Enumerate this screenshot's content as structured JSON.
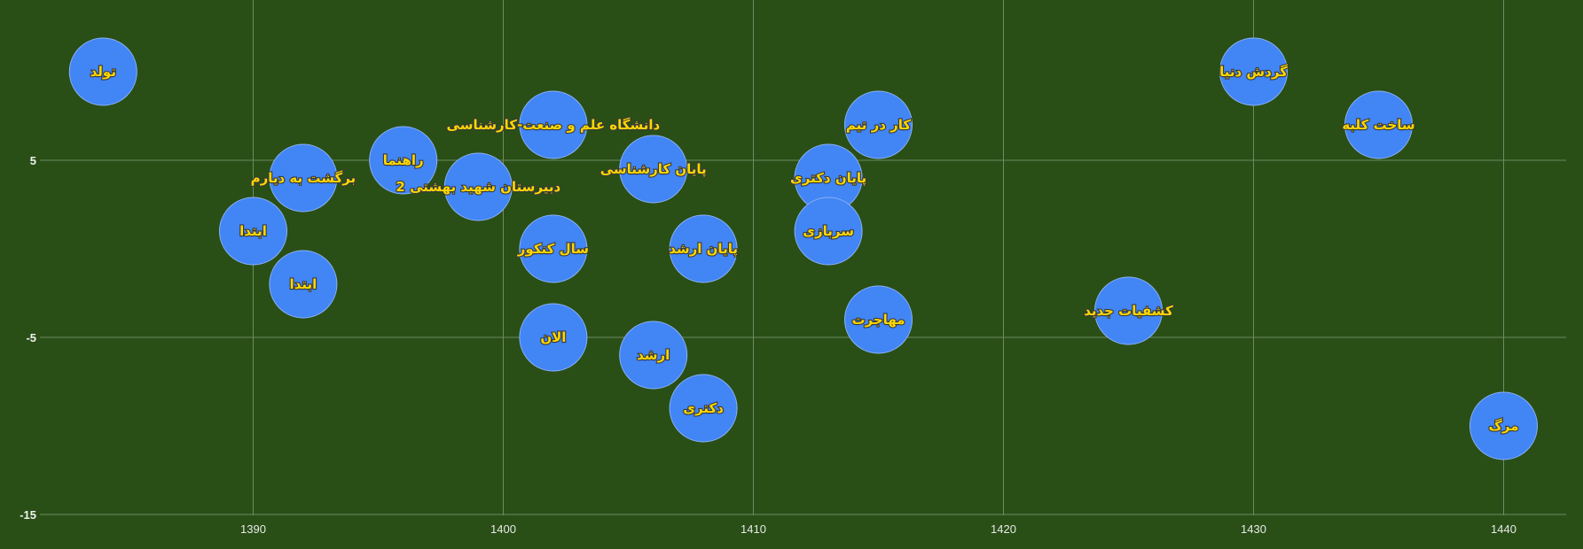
{
  "chart_data": {
    "type": "scatter",
    "title": "",
    "xlabel": "",
    "ylabel": "",
    "xlim": [
      1382,
      1443
    ],
    "ylim": [
      -15,
      15
    ],
    "xticks": [
      1390,
      1400,
      1410,
      1420,
      1430,
      1440
    ],
    "yticks": [
      5,
      -5,
      -15
    ],
    "grid": true,
    "colors": {
      "background": "#294f16",
      "bubble": "#4285f4",
      "label": "#ffd700",
      "grid": "#6f8a62"
    },
    "points": [
      {
        "label": "تولد",
        "x": 1384,
        "y": 10
      },
      {
        "label": "ابتدا",
        "x": 1390,
        "y": 1
      },
      {
        "label": "برگشت به دیارم",
        "x": 1392,
        "y": 4
      },
      {
        "label": "ابتدا",
        "x": 1392,
        "y": -2
      },
      {
        "label": "راهنما",
        "x": 1396,
        "y": 5
      },
      {
        "label": "دبیرستان شهید بهشتی 2",
        "x": 1399,
        "y": 3.5
      },
      {
        "label": "دانشگاه علم و صنعت-کارشناسی",
        "x": 1402,
        "y": 7
      },
      {
        "label": "سال کنکور",
        "x": 1402,
        "y": 0
      },
      {
        "label": "الان",
        "x": 1402,
        "y": -5
      },
      {
        "label": "پایان کارشناسی",
        "x": 1406,
        "y": 4.5
      },
      {
        "label": "ارشد",
        "x": 1406,
        "y": -6
      },
      {
        "label": "پایان ارشد",
        "x": 1408,
        "y": 0
      },
      {
        "label": "دکتری",
        "x": 1408,
        "y": -9
      },
      {
        "label": "پایان دکتری",
        "x": 1413,
        "y": 4
      },
      {
        "label": "سربازی",
        "x": 1413,
        "y": 1
      },
      {
        "label": "کار در تیم",
        "x": 1415,
        "y": 7
      },
      {
        "label": "مهاجرت",
        "x": 1415,
        "y": -4
      },
      {
        "label": "کشفیات جدید",
        "x": 1425,
        "y": -3.5
      },
      {
        "label": "گردش دنیا",
        "x": 1430,
        "y": 10
      },
      {
        "label": "ساخت کلبه",
        "x": 1435,
        "y": 7
      },
      {
        "label": "مرگ",
        "x": 1440,
        "y": -10
      }
    ]
  }
}
